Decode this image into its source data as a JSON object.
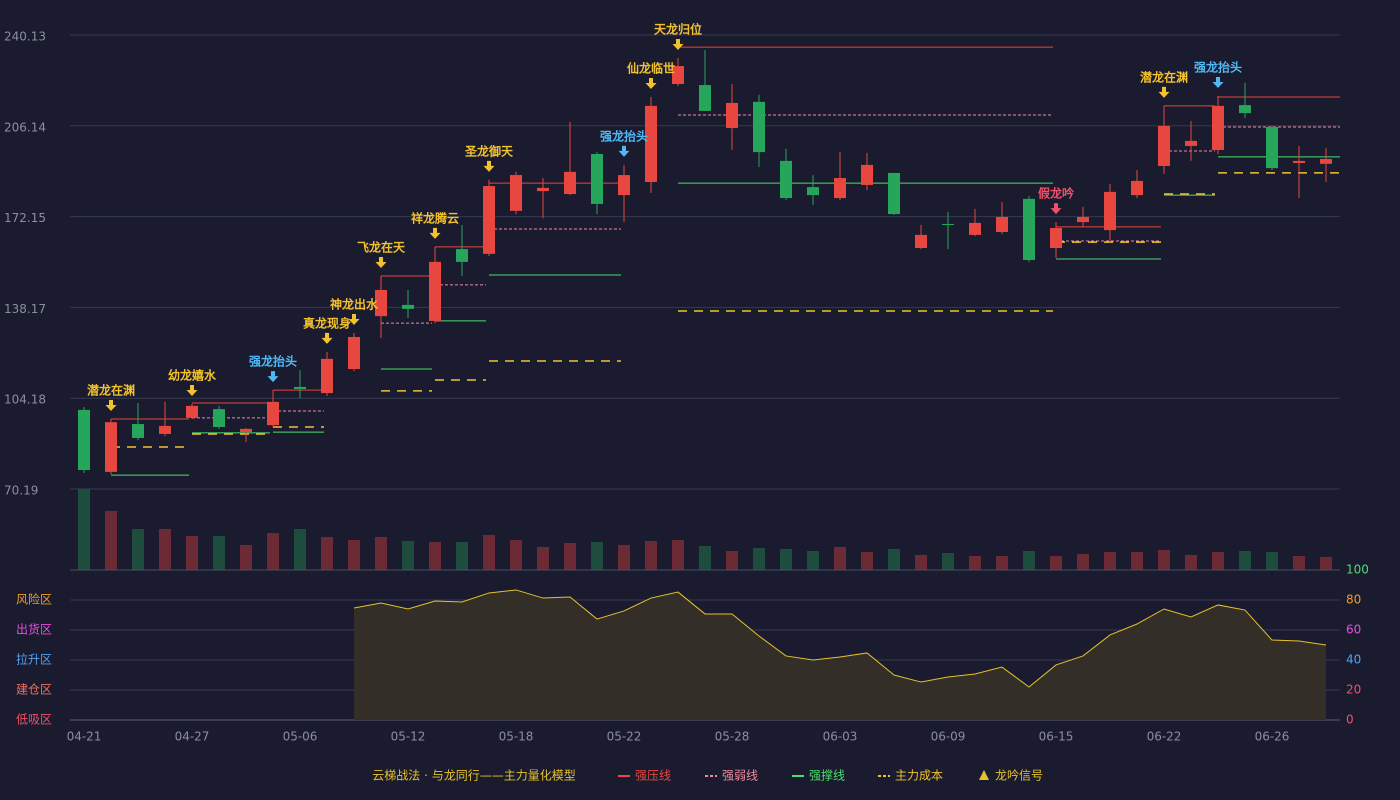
{
  "chart_data": [
    {
      "type": "candlestick",
      "categories": [
        "04-21",
        null,
        null,
        null,
        "04-27",
        null,
        null,
        null,
        "05-06",
        null,
        null,
        null,
        "05-12",
        null,
        null,
        null,
        "05-18",
        null,
        null,
        null,
        "05-22",
        null,
        null,
        null,
        "05-28",
        null,
        null,
        null,
        "06-03",
        null,
        null,
        null,
        "06-09",
        null,
        null,
        null,
        "06-15",
        null,
        null,
        null,
        "06-22",
        null,
        null,
        null,
        "06-26",
        null,
        null
      ],
      "open": [
        99.8,
        76.6,
        94.5,
        90.8,
        96.8,
        100.1,
        91.5,
        94.1,
        108.4,
        106.1,
        115.1,
        134.9,
        139.1,
        133.1,
        160.0,
        158.2,
        174.3,
        181.7,
        180.6,
        195.6,
        180.2,
        185.1,
        221.8,
        221.4,
        205.3,
        215.1,
        193.0,
        183.2,
        179.1,
        184.0,
        188.5,
        160.4,
        169.4,
        165.3,
        166.4,
        178.8,
        160.4,
        170.1,
        167.1,
        180.2,
        191.1,
        198.6,
        197.1,
        213.9,
        205.7,
        192.2,
        191.9
      ],
      "high": [
        100.9,
        96.4,
        102.4,
        102.8,
        102.0,
        101.3,
        93.0,
        107.2,
        114.7,
        121.5,
        128.6,
        149.9,
        144.7,
        160.8,
        169.0,
        185.9,
        188.9,
        186.6,
        207.6,
        196.3,
        191.5,
        216.9,
        231.5,
        234.5,
        221.8,
        217.7,
        197.5,
        187.7,
        196.3,
        196.0,
        188.5,
        169.0,
        173.9,
        175.0,
        177.6,
        179.9,
        170.1,
        175.8,
        184.4,
        189.6,
        213.6,
        207.9,
        217.3,
        222.2,
        206.1,
        198.6,
        197.8
      ],
      "low": [
        76.2,
        75.8,
        88.5,
        90.0,
        96.4,
        92.7,
        87.8,
        93.4,
        104.2,
        105.0,
        114.3,
        126.7,
        134.2,
        132.3,
        149.9,
        157.4,
        173.1,
        171.6,
        180.2,
        173.1,
        170.1,
        181.0,
        221.0,
        211.7,
        197.1,
        190.7,
        178.4,
        176.5,
        178.4,
        182.1,
        172.8,
        160.0,
        160.0,
        164.9,
        165.6,
        155.2,
        156.7,
        168.3,
        162.3,
        179.1,
        188.1,
        193.0,
        195.6,
        209.1,
        189.6,
        179.1,
        185.1
      ],
      "close": [
        77.3,
        95.2,
        89.3,
        93.8,
        101.3,
        93.4,
        92.7,
        102.8,
        107.6,
        118.9,
        127.1,
        144.7,
        137.6,
        155.2,
        155.2,
        183.6,
        187.7,
        182.9,
        188.9,
        176.9,
        187.7,
        213.6,
        228.5,
        211.7,
        214.7,
        196.3,
        179.1,
        180.2,
        186.6,
        191.5,
        173.1,
        165.3,
        169.0,
        169.8,
        172.0,
        155.9,
        167.9,
        172.0,
        181.4,
        185.5,
        206.1,
        200.5,
        213.6,
        210.9,
        190.3,
        193.0,
        193.7
      ],
      "up_color": "#e8473f",
      "down_color": "#26a65b",
      "ylim": [
        70.19,
        240.13
      ],
      "yticks": [
        70.19,
        104.18,
        138.17,
        172.15,
        206.14,
        240.13
      ],
      "grid": true,
      "levels": [
        {
          "name": "强压线",
          "color": "#e8473f",
          "style": "solid",
          "segments": [
            {
              "start": 1,
              "end": 3,
              "value": 96.4
            },
            {
              "start": 4,
              "end": 6,
              "value": 102.4
            },
            {
              "start": 7,
              "end": 8,
              "value": 107.2
            },
            {
              "start": 11,
              "end": 12,
              "value": 149.9
            },
            {
              "start": 13,
              "end": 14,
              "value": 160.8
            },
            {
              "start": 15,
              "end": 19,
              "value": 184.7
            },
            {
              "start": 22,
              "end": 35,
              "value": 235.6
            },
            {
              "start": 36,
              "end": 39,
              "value": 168.3
            },
            {
              "start": 40,
              "end": 41,
              "value": 213.6
            },
            {
              "start": 42,
              "end": 46,
              "value": 216.9
            }
          ]
        },
        {
          "name": "强弱线",
          "color": "#f08aa0",
          "style": "dashed",
          "segments": [
            {
              "start": 4,
              "end": 6,
              "value": 96.8
            },
            {
              "start": 7,
              "end": 8,
              "value": 99.4
            },
            {
              "start": 11,
              "end": 12,
              "value": 132.3
            },
            {
              "start": 13,
              "end": 14,
              "value": 146.6
            },
            {
              "start": 15,
              "end": 19,
              "value": 167.5
            },
            {
              "start": 22,
              "end": 35,
              "value": 210.2
            },
            {
              "start": 36,
              "end": 39,
              "value": 163.0
            },
            {
              "start": 40,
              "end": 41,
              "value": 196.7
            },
            {
              "start": 42,
              "end": 46,
              "value": 205.7
            }
          ]
        },
        {
          "name": "强撑线",
          "color": "#4ade6a",
          "style": "solid",
          "segments": [
            {
              "start": 1,
              "end": 3,
              "value": 75.4
            },
            {
              "start": 4,
              "end": 6,
              "value": 91.2
            },
            {
              "start": 7,
              "end": 8,
              "value": 91.5
            },
            {
              "start": 11,
              "end": 12,
              "value": 115.1
            },
            {
              "start": 13,
              "end": 14,
              "value": 133.1
            },
            {
              "start": 15,
              "end": 19,
              "value": 150.3
            },
            {
              "start": 22,
              "end": 35,
              "value": 184.7
            },
            {
              "start": 36,
              "end": 39,
              "value": 156.3
            },
            {
              "start": 40,
              "end": 41,
              "value": 180.2
            },
            {
              "start": 42,
              "end": 46,
              "value": 194.5
            }
          ]
        },
        {
          "name": "主力成本",
          "color": "#f2c12e",
          "style": "longdash",
          "segments": [
            {
              "start": 1,
              "end": 3,
              "value": 85.9
            },
            {
              "start": 4,
              "end": 6,
              "value": 90.8
            },
            {
              "start": 7,
              "end": 8,
              "value": 93.4
            },
            {
              "start": 11,
              "end": 12,
              "value": 106.9
            },
            {
              "start": 13,
              "end": 14,
              "value": 111.0
            },
            {
              "start": 15,
              "end": 19,
              "value": 118.1
            },
            {
              "start": 22,
              "end": 35,
              "value": 136.8
            },
            {
              "start": 36,
              "end": 39,
              "value": 162.6
            },
            {
              "start": 40,
              "end": 41,
              "value": 180.6
            },
            {
              "start": 42,
              "end": 46,
              "value": 188.5
            }
          ]
        }
      ],
      "signals": [
        {
          "label": "潜龙在渊",
          "index": 1,
          "color": "#f2c12e"
        },
        {
          "label": "幼龙嬉水",
          "index": 4,
          "color": "#f2c12e"
        },
        {
          "label": "强龙抬头",
          "index": 7,
          "color": "#4fb8f5"
        },
        {
          "label": "真龙现身",
          "index": 9,
          "color": "#f2c12e"
        },
        {
          "label": "神龙出水",
          "index": 10,
          "color": "#f2c12e"
        },
        {
          "label": "飞龙在天",
          "index": 11,
          "color": "#f2c12e"
        },
        {
          "label": "祥龙腾云",
          "index": 13,
          "color": "#f2c12e"
        },
        {
          "label": "圣龙御天",
          "index": 15,
          "color": "#f2c12e"
        },
        {
          "label": "强龙抬头",
          "index": 20,
          "color": "#4fb8f5"
        },
        {
          "label": "仙龙临世",
          "index": 21,
          "color": "#f2c12e"
        },
        {
          "label": "天龙归位",
          "index": 22,
          "color": "#f2c12e"
        },
        {
          "label": "假龙吟",
          "index": 36,
          "color": "#f0506a"
        },
        {
          "label": "潜龙在渊",
          "index": 40,
          "color": "#f2c12e"
        },
        {
          "label": "强龙抬头",
          "index": 42,
          "color": "#4fb8f5"
        }
      ],
      "legend_title": "云梯战法 · 与龙同行——主力量化模型",
      "signal_legend": "龙吟信号"
    },
    {
      "type": "bar",
      "values": [
        81,
        59,
        41,
        41,
        34,
        34,
        25,
        37,
        41,
        33,
        30,
        33,
        29,
        28,
        28,
        35,
        30,
        23,
        27,
        28,
        25,
        29,
        30,
        24,
        19,
        22,
        21,
        19,
        23,
        18,
        21,
        15,
        17,
        14,
        14,
        19,
        14,
        16,
        18,
        18,
        20,
        15,
        18,
        19,
        18,
        14,
        13
      ],
      "up_color": "#6b2a34",
      "down_color": "#1f4d3d"
    },
    {
      "type": "area",
      "values": [
        null,
        null,
        null,
        null,
        null,
        null,
        null,
        null,
        null,
        null,
        74.7,
        78,
        74,
        79.3,
        78.7,
        84.7,
        86.7,
        81.3,
        82,
        67.3,
        72.7,
        81.3,
        85.3,
        70.7,
        70.7,
        56,
        42.7,
        40,
        42,
        44.7,
        30,
        25.3,
        28.7,
        30.7,
        35.3,
        22,
        36.7,
        42.7,
        56.7,
        64,
        74,
        68.7,
        76.7,
        73.3,
        53.3,
        52.7,
        50
      ],
      "color": "#e6c229",
      "fill": "#332e28",
      "ylim": [
        0,
        100
      ],
      "yticks": [
        0,
        20,
        40,
        60,
        80,
        100
      ],
      "ytick_colors": [
        "#f0506a",
        "#f0506a",
        "#4fa3f5",
        "#e84fe0",
        "#f29a2e",
        "#4ade6a"
      ],
      "zones": [
        {
          "label": "风险区",
          "color": "#f29a2e"
        },
        {
          "label": "出货区",
          "color": "#e84fe0"
        },
        {
          "label": "拉升区",
          "color": "#4fa3f5"
        },
        {
          "label": "建仓区",
          "color": "#f07060"
        },
        {
          "label": "低吸区",
          "color": "#f0506a"
        }
      ]
    }
  ]
}
